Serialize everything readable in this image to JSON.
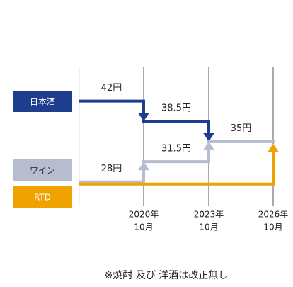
{
  "chart_data": {
    "type": "step",
    "categories": [
      null,
      [
        "2020年",
        "10月"
      ],
      [
        "2023年",
        "10月"
      ],
      [
        "2026年",
        "10月"
      ]
    ],
    "ylim": [
      26,
      46
    ],
    "series": [
      {
        "name": "日本酒",
        "color": "#1f3d8f",
        "values": [
          42,
          38.5,
          35,
          35
        ],
        "value_labels": [
          "42円",
          "38.5円",
          "35円",
          null
        ]
      },
      {
        "name": "ワイン",
        "color": "#b6bdd0",
        "values": [
          28,
          31.5,
          35,
          35
        ],
        "value_labels": [
          "28円",
          "31.5円",
          null,
          null
        ]
      },
      {
        "name": "RTD",
        "color": "#f0a300",
        "values": [
          28,
          28,
          28,
          35
        ]
      }
    ],
    "note": "※焼酎 及び 洋酒は改正無し"
  }
}
